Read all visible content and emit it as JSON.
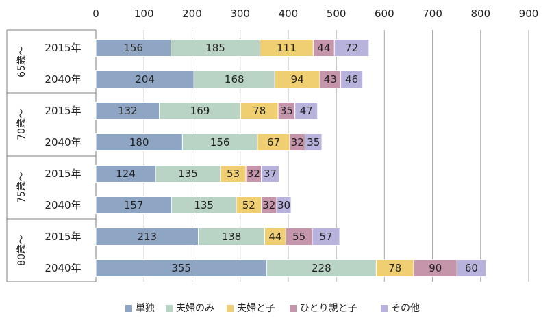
{
  "chart_data": {
    "type": "bar",
    "orientation": "horizontal",
    "stacked": true,
    "xlim": [
      0,
      900
    ],
    "x_ticks": [
      0,
      100,
      200,
      300,
      400,
      500,
      600,
      700,
      800,
      900
    ],
    "x_axis_position": "top",
    "grid": true,
    "legend_position": "bottom",
    "groups": [
      {
        "label": "65歳～",
        "rows": [
          "2015年",
          "2040年"
        ]
      },
      {
        "label": "70歳～",
        "rows": [
          "2015年",
          "2040年"
        ]
      },
      {
        "label": "75歳～",
        "rows": [
          "2015年",
          "2040年"
        ]
      },
      {
        "label": "80歳～",
        "rows": [
          "2015年",
          "2040年"
        ]
      }
    ],
    "series": [
      {
        "name": "単独",
        "color": "#8ea6c4",
        "values": [
          156,
          204,
          132,
          180,
          124,
          157,
          213,
          355
        ]
      },
      {
        "name": "夫婦のみ",
        "color": "#b9d3c4",
        "values": [
          185,
          168,
          169,
          156,
          135,
          135,
          138,
          228
        ]
      },
      {
        "name": "夫婦と子",
        "color": "#f0cf72",
        "values": [
          111,
          94,
          78,
          67,
          53,
          52,
          44,
          78
        ]
      },
      {
        "name": "ひとり親と子",
        "color": "#c595ab",
        "values": [
          44,
          43,
          35,
          32,
          32,
          32,
          55,
          90
        ]
      },
      {
        "name": "その他",
        "color": "#b7b3dc",
        "values": [
          72,
          46,
          47,
          35,
          37,
          30,
          57,
          60
        ]
      }
    ]
  }
}
